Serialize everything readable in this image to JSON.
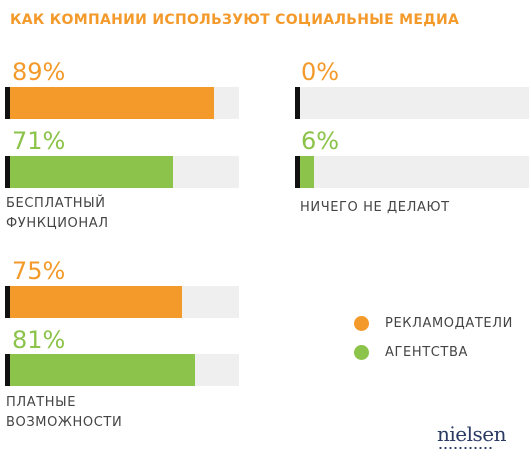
{
  "chart_data": {
    "type": "bar",
    "title": "КАК КОМПАНИИ ИСПОЛЬЗУЮТ СОЦИАЛЬНЫЕ МЕДИА",
    "xlim": [
      0,
      100
    ],
    "categories": [
      "БЕСПЛАТНЫЙ ФУНКЦИОНАЛ",
      "НИЧЕГО НЕ ДЕЛАЮТ",
      "ПЛАТНЫЕ ВОЗМОЖНОСТИ"
    ],
    "category_labels": {
      "free": [
        "БЕСПЛАТНЫЙ",
        "ФУНКЦИОНАЛ"
      ],
      "nothing": [
        "НИЧЕГО НЕ ДЕЛАЮТ"
      ],
      "paid": [
        "ПЛАТНЫЕ",
        "ВОЗМОЖНОСТИ"
      ]
    },
    "series": [
      {
        "name": "РЕКЛАМОДАТЕЛИ",
        "color": "#f39a2b",
        "values": [
          89,
          0,
          75
        ],
        "labels": [
          "89%",
          "0%",
          "75%"
        ]
      },
      {
        "name": "АГЕНТСТВА",
        "color": "#8cc34a",
        "values": [
          71,
          6,
          81
        ],
        "labels": [
          "71%",
          "6%",
          "81%"
        ]
      }
    ],
    "legend": "right",
    "grid": false
  },
  "logo": {
    "text": "nielsen"
  }
}
